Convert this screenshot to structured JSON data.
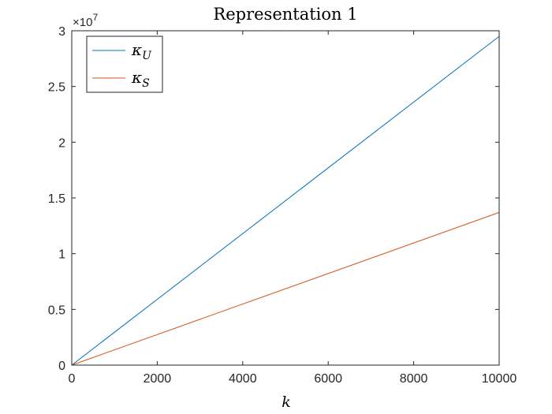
{
  "chart_data": {
    "type": "line",
    "title": "Representation 1",
    "xlabel": "k",
    "ylabel": "",
    "y_exponent_label": "×10",
    "y_exponent_power": "7",
    "xlim": [
      0,
      10000
    ],
    "ylim": [
      0,
      3
    ],
    "x_ticks": [
      0,
      2000,
      4000,
      6000,
      8000,
      10000
    ],
    "x_tick_labels": [
      "0",
      "2000",
      "4000",
      "6000",
      "8000",
      "10000"
    ],
    "y_ticks": [
      0,
      0.5,
      1,
      1.5,
      2,
      2.5,
      3
    ],
    "y_tick_labels": [
      "0",
      "0.5",
      "1",
      "1.5",
      "2",
      "2.5",
      "3"
    ],
    "grid": false,
    "legend_position": "top-left",
    "series": [
      {
        "name": "κU",
        "name_main": "κ",
        "name_sub": "U",
        "color": "#0072BD",
        "x": [
          0,
          10000
        ],
        "y": [
          0,
          2.95
        ]
      },
      {
        "name": "κS",
        "name_main": "κ",
        "name_sub": "S",
        "color": "#D95319",
        "x": [
          0,
          10000
        ],
        "y": [
          0,
          1.37
        ]
      }
    ]
  }
}
